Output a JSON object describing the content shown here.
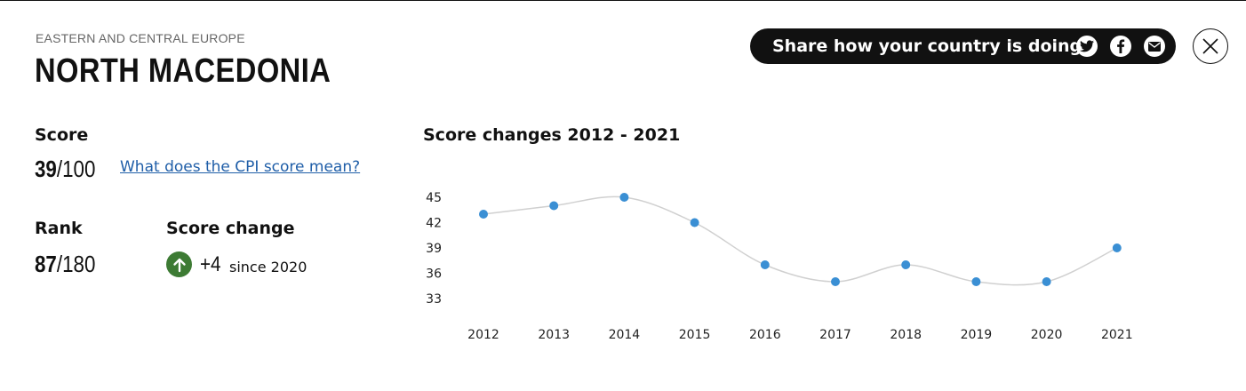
{
  "header": {
    "region": "EASTERN AND CENTRAL EUROPE",
    "country": "NORTH MACEDONIA"
  },
  "share": {
    "label": "Share how your country is doing",
    "icons": [
      "twitter-icon",
      "facebook-icon",
      "email-icon"
    ]
  },
  "close_icon": "close-icon",
  "score": {
    "label": "Score",
    "value": "39",
    "max": "/100",
    "link": "What does the CPI score mean?"
  },
  "rank": {
    "label": "Rank",
    "value": "87",
    "max": "/180"
  },
  "score_change": {
    "label": "Score change",
    "direction_icon": "arrow-up-icon",
    "value": "+4",
    "since": "since 2020"
  },
  "colors": {
    "accent_up": "#3d7b34",
    "link": "#1f5ea8",
    "point": "#3a8fd4",
    "line": "#d0d0d0"
  },
  "chart_data": {
    "type": "line",
    "title": "Score changes 2012 - 2021",
    "x": [
      "2012",
      "2013",
      "2014",
      "2015",
      "2016",
      "2017",
      "2018",
      "2019",
      "2020",
      "2021"
    ],
    "series": [
      {
        "values": [
          43,
          44,
          45,
          42,
          37,
          35,
          37,
          35,
          35,
          39
        ]
      }
    ],
    "yticks": [
      45,
      42,
      39,
      36,
      33
    ],
    "ylim": [
      33,
      45
    ],
    "grid": false,
    "legend": "none"
  }
}
